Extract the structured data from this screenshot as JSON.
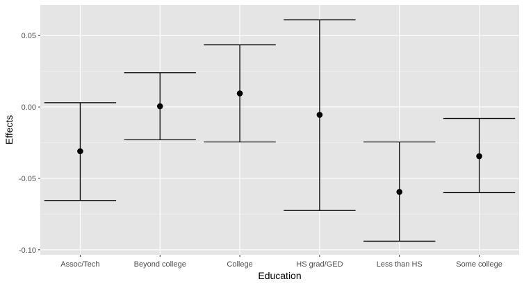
{
  "chart_data": {
    "type": "errorbar",
    "title": "",
    "xlabel": "Education",
    "ylabel": "Effects",
    "categories": [
      "Assoc/Tech",
      "Beyond college",
      "College",
      "HS grad/GED",
      "Less than HS",
      "Some college"
    ],
    "series": [
      {
        "estimate": [
          -0.031,
          0.0005,
          0.0095,
          -0.0055,
          -0.0595,
          -0.0345
        ],
        "lower": [
          -0.0655,
          -0.023,
          -0.0245,
          -0.0725,
          -0.094,
          -0.06
        ],
        "upper": [
          0.003,
          0.024,
          0.0435,
          0.061,
          -0.0245,
          -0.008
        ]
      }
    ],
    "ylim": [
      -0.1035,
      0.0715
    ],
    "yticks": [
      -0.1,
      -0.05,
      0.0,
      0.05
    ],
    "ytick_labels": [
      "-0.10",
      "-0.05",
      "0.00",
      "0.05"
    ],
    "grid": true,
    "colors": {
      "panel_background": "#e5e5e5",
      "grid_major": "#ffffff",
      "grid_minor": "#f2f2f2",
      "marks": "#000000",
      "tick_text": "#4d4d4d"
    }
  }
}
